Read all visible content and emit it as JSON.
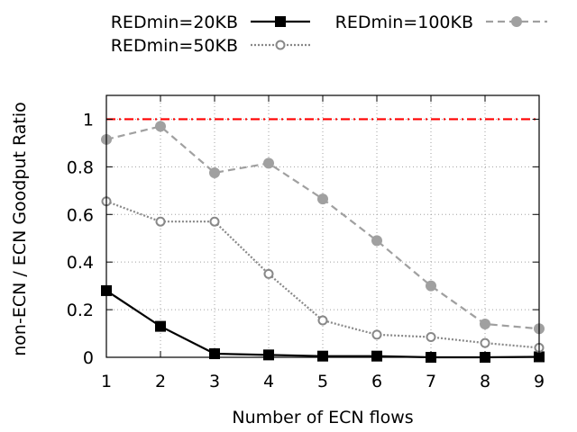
{
  "chart_data": {
    "type": "line",
    "xlabel": "Number of ECN flows",
    "ylabel": "non-ECN / ECN Goodput Ratio",
    "x": [
      1,
      2,
      3,
      4,
      5,
      6,
      7,
      8,
      9
    ],
    "xlim": [
      1,
      9
    ],
    "ylim": [
      0,
      1.1
    ],
    "xticks": [
      "1",
      "2",
      "3",
      "4",
      "5",
      "6",
      "7",
      "8",
      "9"
    ],
    "yticks": [
      "0",
      "0.2",
      "0.4",
      "0.6",
      "0.8",
      "1"
    ],
    "grid": true,
    "legend_position": "top",
    "series": [
      {
        "name": "REDmin=20KB",
        "color": "#000000",
        "dash": "solid",
        "marker": "filled-square",
        "values": [
          0.28,
          0.13,
          0.015,
          0.01,
          0.005,
          0.005,
          0.0,
          0.0,
          0.002
        ]
      },
      {
        "name": "REDmin=50KB",
        "color": "#888888",
        "dash": "dotted",
        "marker": "hollow-circle",
        "values": [
          0.655,
          0.57,
          0.57,
          0.35,
          0.155,
          0.095,
          0.085,
          0.06,
          0.04
        ]
      },
      {
        "name": "REDmin=100KB",
        "color": "#a0a0a0",
        "dash": "dashed",
        "marker": "filled-circle",
        "values": [
          0.915,
          0.97,
          0.775,
          0.815,
          0.665,
          0.49,
          0.3,
          0.14,
          0.12
        ]
      }
    ],
    "reference_line": {
      "y": 1.0,
      "color": "#ff0000",
      "dash": "dash-dot"
    }
  }
}
